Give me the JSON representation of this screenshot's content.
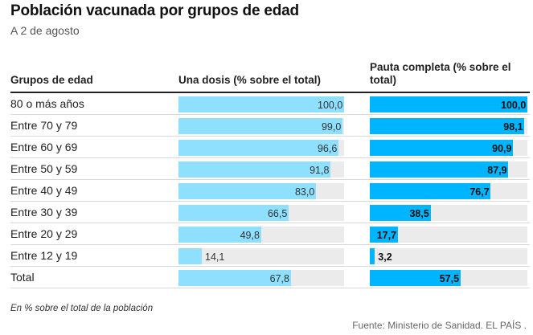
{
  "title": "Población vacunada por grupos de edad",
  "subtitle": "A 2 de agosto",
  "columns": {
    "group": "Grupos de edad",
    "una_dosis": "Una dosis (% sobre el total)",
    "pauta_completa": "Pauta completa (% sobre el total)"
  },
  "colors": {
    "una_dosis": "#8fe0ff",
    "pauta_completa": "#00b5ff",
    "track": "#ebebeb"
  },
  "chart_data": {
    "type": "bar",
    "title": "Población vacunada por grupos de edad",
    "subtitle": "A 2 de agosto",
    "categories": [
      "80 o más años",
      "Entre 70 y 79",
      "Entre 60 y 69",
      "Entre 50 y 59",
      "Entre 40 y 49",
      "Entre 30 y 39",
      "Entre 20 y 29",
      "Entre 12 y 19",
      "Total"
    ],
    "series": [
      {
        "name": "Una dosis (% sobre el total)",
        "values": [
          100.0,
          99.0,
          96.6,
          91.8,
          83.0,
          66.5,
          49.8,
          14.1,
          67.8
        ],
        "labels": [
          "100,0",
          "99,0",
          "96,6",
          "91,8",
          "83,0",
          "66,5",
          "49,8",
          "14,1",
          "67,8"
        ]
      },
      {
        "name": "Pauta completa (% sobre el total)",
        "values": [
          100.0,
          98.1,
          90.9,
          87.9,
          76.7,
          38.5,
          17.7,
          3.2,
          57.5
        ],
        "labels": [
          "100,0",
          "98,1",
          "90,9",
          "87,9",
          "76,7",
          "38,5",
          "17,7",
          "3,2",
          "57,5"
        ]
      }
    ],
    "xlim": [
      0,
      100
    ]
  },
  "note": "En % sobre el total de la población",
  "source": "Fuente: Ministerio de Sanidad. EL PAÍS ."
}
